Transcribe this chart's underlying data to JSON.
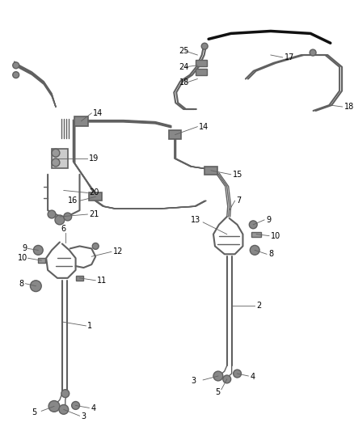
{
  "bg_color": "#ffffff",
  "line_color": "#606060",
  "label_color": "#000000",
  "fig_width": 4.38,
  "fig_height": 5.33,
  "dpi": 100
}
